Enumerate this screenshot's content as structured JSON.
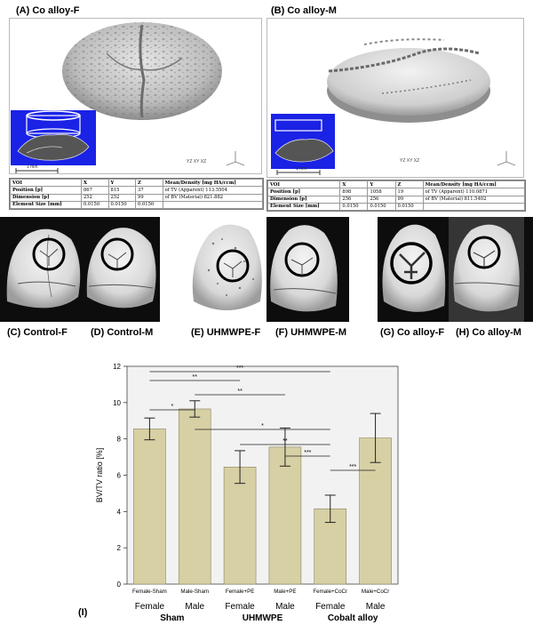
{
  "panels": {
    "A": {
      "label": "(A) Co alloy-F",
      "scale": "1 mm"
    },
    "B": {
      "label": "(B) Co alloy-M",
      "scale": "1 mm"
    },
    "C": {
      "label": "(C) Control-F"
    },
    "D": {
      "label": "(D) Control-M"
    },
    "E": {
      "label": "(E) UHMWPE-F"
    },
    "F": {
      "label": "(F) UHMWPE-M"
    },
    "G": {
      "label": "(G) Co alloy-F"
    },
    "H": {
      "label": "(H) Co alloy-M"
    },
    "I": {
      "label": "(I)"
    }
  },
  "tableA": {
    "headers": [
      "VOI",
      "X",
      "Y",
      "Z",
      "Mean/Density [mg HA/ccm]"
    ],
    "rows": [
      [
        "Position    [p]",
        "867",
        "815",
        "37",
        "of TV (Apparent)  113.5504"
      ],
      [
        "Dimension  [p]",
        "252",
        "252",
        "99",
        "of BV (Material)    821.882"
      ],
      [
        "Element Size [mm]",
        "0.0150",
        "0.0150",
        "0.0150",
        ""
      ]
    ]
  },
  "tableB": {
    "headers": [
      "VOI",
      "X",
      "Y",
      "Z",
      "Mean/Density [mg HA/ccm]"
    ],
    "rows": [
      [
        "Position    [p]",
        "898",
        "1058",
        "19",
        "of TV (Apparent)  110.0871"
      ],
      [
        "Dimension  [p]",
        "256",
        "256",
        "99",
        "of BV (Material)   811.5402"
      ],
      [
        "Element Size [mm]",
        "0.0150",
        "0.0150",
        "0.0150",
        ""
      ]
    ]
  },
  "chart_data": {
    "type": "bar",
    "ylabel": "BV/TV ratio [%]",
    "ylim": [
      0,
      12
    ],
    "yticks": [
      0,
      2,
      4,
      6,
      8,
      10,
      12
    ],
    "categories": [
      "Female-Sham",
      "Male-Sham",
      "Female+PE",
      "Male+PE",
      "Female+CoCr",
      "Male+CoCr"
    ],
    "values": [
      8.55,
      9.65,
      6.45,
      7.55,
      4.15,
      8.05
    ],
    "errors": [
      0.6,
      0.45,
      0.9,
      1.05,
      0.75,
      1.35
    ],
    "sex_labels": [
      "Female",
      "Male",
      "Female",
      "Male",
      "Female",
      "Male"
    ],
    "group_labels": [
      "Sham",
      "UHMWPE",
      "Cobalt alloy"
    ],
    "significance": [
      {
        "from": 0,
        "to": 4,
        "label": "***"
      },
      {
        "from": 0,
        "to": 2,
        "label": "**"
      },
      {
        "from": 1,
        "to": 3,
        "label": "**"
      },
      {
        "from": 0,
        "to": 1,
        "label": "*"
      },
      {
        "from": 1,
        "to": 4,
        "label": "*"
      },
      {
        "from": 2,
        "to": 4,
        "label": "**"
      },
      {
        "from": 3,
        "to": 4,
        "label": "***"
      },
      {
        "from": 4,
        "to": 5,
        "label": "***"
      }
    ],
    "colors": {
      "bar": "#d6d0a4",
      "bar_stroke": "#8a8460",
      "plot_bg": "#f2f2f2"
    }
  }
}
